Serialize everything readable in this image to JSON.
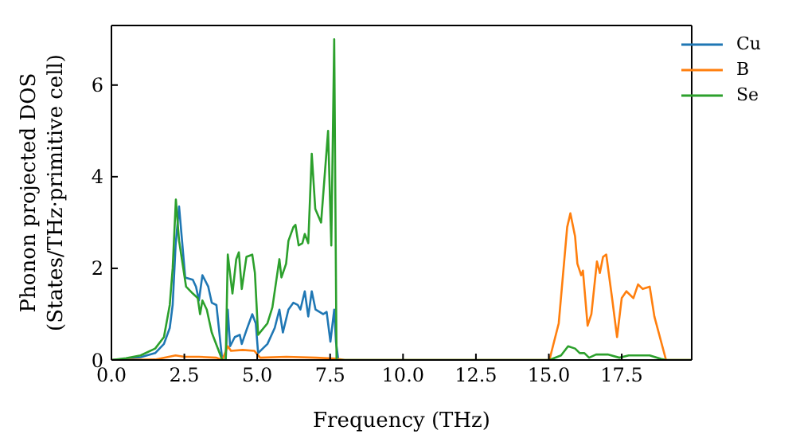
{
  "chart_data": {
    "type": "line",
    "xlabel": "Frequency (THz)",
    "ylabel": "Phonon projected DOS\n(States/THz·primitive cell)",
    "xlim": [
      0,
      19.9
    ],
    "ylim": [
      0,
      7.3
    ],
    "xticks": [
      {
        "value": 0,
        "label": "0.0"
      },
      {
        "value": 2.5,
        "label": "2.5"
      },
      {
        "value": 5,
        "label": "5.0"
      },
      {
        "value": 7.5,
        "label": "7.5"
      },
      {
        "value": 10,
        "label": "10.0"
      },
      {
        "value": 12.5,
        "label": "12.5"
      },
      {
        "value": 15,
        "label": "15.0"
      },
      {
        "value": 17.5,
        "label": "17.5"
      }
    ],
    "yticks": [
      0,
      2,
      4,
      6
    ],
    "grid": false,
    "legend": "top right",
    "marker": "none",
    "line_style": "solid",
    "series": [
      {
        "name": "Cu",
        "color": "#1f77b4",
        "x": [
          0,
          0.5,
          1,
          1.5,
          1.8,
          2.0,
          2.1,
          2.2,
          2.32,
          2.53,
          2.79,
          2.9,
          3.0,
          3.12,
          3.32,
          3.44,
          3.6,
          3.8,
          3.92,
          3.99,
          4.07,
          4.23,
          4.4,
          4.47,
          4.63,
          4.83,
          4.95,
          5.03,
          5.35,
          5.6,
          5.76,
          5.88,
          6.07,
          6.24,
          6.39,
          6.48,
          6.63,
          6.75,
          6.87,
          7.0,
          7.26,
          7.38,
          7.51,
          7.64,
          7.7,
          7.78
        ],
        "values": [
          0,
          0.02,
          0.06,
          0.15,
          0.35,
          0.7,
          1.2,
          2.5,
          3.35,
          1.8,
          1.75,
          1.6,
          1.3,
          1.85,
          1.6,
          1.25,
          1.2,
          0,
          0,
          1.1,
          0.3,
          0.5,
          0.55,
          0.35,
          0.65,
          1.0,
          0.8,
          0.15,
          0.35,
          0.7,
          1.1,
          0.6,
          1.1,
          1.25,
          1.2,
          1.1,
          1.5,
          0.95,
          1.5,
          1.1,
          1.0,
          1.05,
          0.4,
          1.1,
          0.4,
          0
        ]
      },
      {
        "name": "B",
        "color": "#ff7f0e",
        "x": [
          0,
          1.5,
          2.2,
          2.5,
          3.0,
          3.6,
          3.8,
          3.99,
          4.1,
          4.5,
          4.9,
          5.1,
          6,
          7,
          7.7,
          8,
          10,
          12.5,
          14.8,
          15.02,
          15.34,
          15.63,
          15.74,
          15.9,
          15.98,
          16.11,
          16.17,
          16.33,
          16.46,
          16.65,
          16.75,
          16.86,
          16.97,
          17.18,
          17.34,
          17.5,
          17.66,
          17.9,
          18.06,
          18.22,
          18.46,
          18.62,
          19.02,
          19.9
        ],
        "values": [
          0,
          0.01,
          0.1,
          0.07,
          0.07,
          0.05,
          0,
          0.3,
          0.2,
          0.22,
          0.2,
          0.05,
          0.07,
          0.05,
          0.03,
          0,
          0,
          0,
          0,
          0,
          0.8,
          2.9,
          3.2,
          2.7,
          2.1,
          1.85,
          1.95,
          0.75,
          1.0,
          2.15,
          1.9,
          2.25,
          2.3,
          1.3,
          0.5,
          1.35,
          1.5,
          1.35,
          1.65,
          1.55,
          1.6,
          0.95,
          0,
          0
        ]
      },
      {
        "name": "Se",
        "color": "#2ca02c",
        "x": [
          0,
          0.5,
          1,
          1.5,
          1.8,
          2.0,
          2.1,
          2.21,
          2.32,
          2.56,
          2.79,
          2.96,
          3.04,
          3.12,
          3.27,
          3.44,
          3.68,
          3.8,
          3.92,
          3.99,
          4.15,
          4.28,
          4.37,
          4.47,
          4.63,
          4.83,
          4.92,
          5.03,
          5.35,
          5.52,
          5.76,
          5.83,
          5.99,
          6.07,
          6.24,
          6.31,
          6.42,
          6.55,
          6.63,
          6.75,
          6.87,
          6.99,
          7.19,
          7.43,
          7.54,
          7.64,
          7.72,
          8,
          10,
          12.5,
          15.02,
          15.42,
          15.66,
          15.9,
          16.06,
          16.22,
          16.38,
          16.62,
          17.02,
          17.42,
          17.74,
          18.46,
          18.86,
          19.02,
          19.9
        ],
        "values": [
          0,
          0.04,
          0.1,
          0.25,
          0.5,
          1.2,
          2.0,
          3.5,
          2.6,
          1.6,
          1.45,
          1.35,
          1.0,
          1.3,
          1.1,
          0.6,
          0.2,
          0,
          0,
          2.3,
          1.45,
          2.2,
          2.35,
          1.55,
          2.25,
          2.3,
          1.9,
          0.55,
          0.8,
          1.15,
          2.2,
          1.8,
          2.1,
          2.6,
          2.9,
          2.95,
          2.5,
          2.55,
          2.75,
          2.55,
          4.5,
          3.3,
          3.0,
          5.0,
          2.5,
          7.0,
          0,
          0,
          0,
          0,
          0,
          0.1,
          0.3,
          0.25,
          0.15,
          0.15,
          0.05,
          0.12,
          0.12,
          0.05,
          0.1,
          0.1,
          0.02,
          0,
          0
        ]
      }
    ]
  }
}
